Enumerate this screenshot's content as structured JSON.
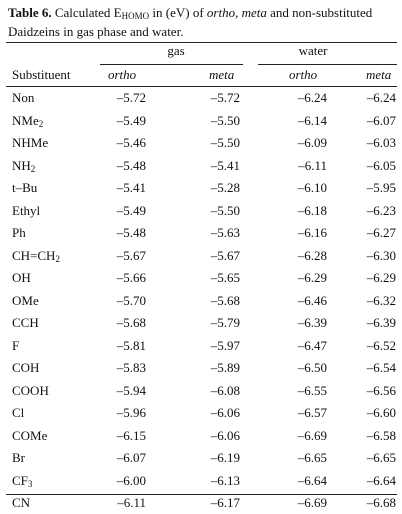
{
  "caption": {
    "label": "Table 6.",
    "text_1": " Calculated E",
    "sub": "HOMO",
    "text_2": " in (eV) of ",
    "italic_1": "ortho",
    "text_3": ", ",
    "italic_2": "meta",
    "text_4": " and non-substituted Daidzeins in gas phase and water."
  },
  "table": {
    "group_headers": [
      "gas",
      "water"
    ],
    "columns": [
      "Substituent",
      "ortho",
      "meta",
      "ortho",
      "meta"
    ],
    "rows": [
      {
        "substituent": "Non",
        "sub_suffix": "",
        "sub_tail": "",
        "gas_ortho": "–5.72",
        "gas_meta": "–5.72",
        "water_ortho": "–6.24",
        "water_meta": "–6.24"
      },
      {
        "substituent": "NMe",
        "sub_suffix": "2",
        "sub_tail": "",
        "gas_ortho": "–5.49",
        "gas_meta": "–5.50",
        "water_ortho": "–6.14",
        "water_meta": "–6.07"
      },
      {
        "substituent": "NHMe",
        "sub_suffix": "",
        "sub_tail": "",
        "gas_ortho": "–5.46",
        "gas_meta": "–5.50",
        "water_ortho": "–6.09",
        "water_meta": "–6.03"
      },
      {
        "substituent": "NH",
        "sub_suffix": "2",
        "sub_tail": "",
        "gas_ortho": "–5.48",
        "gas_meta": "–5.41",
        "water_ortho": "–6.11",
        "water_meta": "–6.05"
      },
      {
        "substituent": "t–Bu",
        "sub_suffix": "",
        "sub_tail": "",
        "gas_ortho": "–5.41",
        "gas_meta": "–5.28",
        "water_ortho": "–6.10",
        "water_meta": "–5.95"
      },
      {
        "substituent": "Ethyl",
        "sub_suffix": "",
        "sub_tail": "",
        "gas_ortho": "–5.49",
        "gas_meta": "–5.50",
        "water_ortho": "–6.18",
        "water_meta": "–6.23"
      },
      {
        "substituent": "Ph",
        "sub_suffix": "",
        "sub_tail": "",
        "gas_ortho": "–5.48",
        "gas_meta": "–5.63",
        "water_ortho": "–6.16",
        "water_meta": "–6.27"
      },
      {
        "substituent": "CH=CH",
        "sub_suffix": "2",
        "sub_tail": "",
        "gas_ortho": "–5.67",
        "gas_meta": "–5.67",
        "water_ortho": "–6.28",
        "water_meta": "–6.30"
      },
      {
        "substituent": "OH",
        "sub_suffix": "",
        "sub_tail": "",
        "gas_ortho": "–5.66",
        "gas_meta": "–5.65",
        "water_ortho": "–6.29",
        "water_meta": "–6.29"
      },
      {
        "substituent": "OMe",
        "sub_suffix": "",
        "sub_tail": "",
        "gas_ortho": "–5.70",
        "gas_meta": "–5.68",
        "water_ortho": "–6.46",
        "water_meta": "–6.32"
      },
      {
        "substituent": "CCH",
        "sub_suffix": "",
        "sub_tail": "",
        "gas_ortho": "–5.68",
        "gas_meta": "–5.79",
        "water_ortho": "–6.39",
        "water_meta": "–6.39"
      },
      {
        "substituent": "F",
        "sub_suffix": "",
        "sub_tail": "",
        "gas_ortho": "–5.81",
        "gas_meta": "–5.97",
        "water_ortho": "–6.47",
        "water_meta": "–6.52"
      },
      {
        "substituent": "COH",
        "sub_suffix": "",
        "sub_tail": "",
        "gas_ortho": "–5.83",
        "gas_meta": "–5.89",
        "water_ortho": "–6.50",
        "water_meta": "–6.54"
      },
      {
        "substituent": "COOH",
        "sub_suffix": "",
        "sub_tail": "",
        "gas_ortho": "–5.94",
        "gas_meta": "–6.08",
        "water_ortho": "–6.55",
        "water_meta": "–6.56"
      },
      {
        "substituent": "Cl",
        "sub_suffix": "",
        "sub_tail": "",
        "gas_ortho": "–5.96",
        "gas_meta": "–6.06",
        "water_ortho": "–6.57",
        "water_meta": "–6.60"
      },
      {
        "substituent": "COMe",
        "sub_suffix": "",
        "sub_tail": "",
        "gas_ortho": "–6.15",
        "gas_meta": "–6.06",
        "water_ortho": "–6.69",
        "water_meta": "–6.58"
      },
      {
        "substituent": "Br",
        "sub_suffix": "",
        "sub_tail": "",
        "gas_ortho": "–6.07",
        "gas_meta": "–6.19",
        "water_ortho": "–6.65",
        "water_meta": "–6.65"
      },
      {
        "substituent": "CF",
        "sub_suffix": "3",
        "sub_tail": "",
        "gas_ortho": "–6.00",
        "gas_meta": "–6.13",
        "water_ortho": "–6.64",
        "water_meta": "–6.64"
      },
      {
        "substituent": "CN",
        "sub_suffix": "",
        "sub_tail": "",
        "gas_ortho": "–6.11",
        "gas_meta": "–6.17",
        "water_ortho": "–6.69",
        "water_meta": "–6.68"
      }
    ]
  }
}
